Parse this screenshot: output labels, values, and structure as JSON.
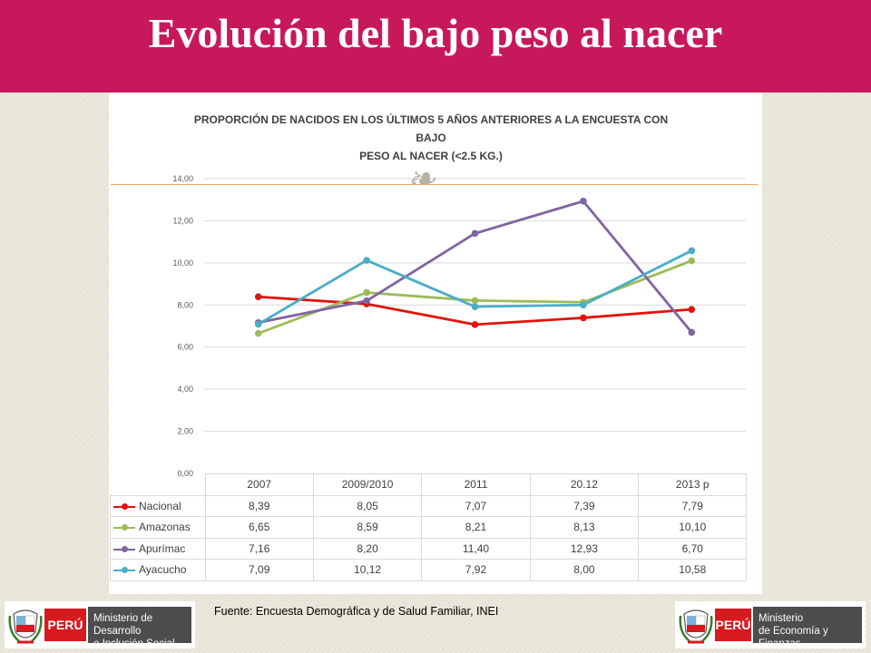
{
  "header": {
    "title": "Evolución del bajo peso al nacer",
    "bg_color": "#c8185c"
  },
  "chart_data": {
    "type": "line",
    "title_lines": [
      "PROPORCIÓN DE NACIDOS EN LOS ÚLTIMOS 5 AÑOS ANTERIORES A LA ENCUESTA CON",
      "BAJO",
      "PESO AL NACER (<2.5 KG.)"
    ],
    "categories": [
      "2007",
      "2009/2010",
      "2011",
      "20.12",
      "2013 p"
    ],
    "ylim": [
      0,
      14
    ],
    "yticks": [
      "0,00",
      "2,00",
      "4,00",
      "6,00",
      "8,00",
      "10,00",
      "12,00",
      "14,00"
    ],
    "grid": true,
    "legend": "data-table",
    "series": [
      {
        "name": "Nacional",
        "color": "#e3120b",
        "values": [
          8.39,
          8.05,
          7.07,
          7.39,
          7.79
        ],
        "labels": [
          "8,39",
          "8,05",
          "7,07",
          "7,39",
          "7,79"
        ]
      },
      {
        "name": "Amazonas",
        "color": "#9bbb59",
        "values": [
          6.65,
          8.59,
          8.21,
          8.13,
          10.1
        ],
        "labels": [
          "6,65",
          "8,59",
          "8,21",
          "8,13",
          "10,10"
        ]
      },
      {
        "name": "Apurímac",
        "color": "#8064a2",
        "values": [
          7.16,
          8.2,
          11.4,
          12.93,
          6.7
        ],
        "labels": [
          "7,16",
          "8,20",
          "11,40",
          "12,93",
          "6,70"
        ]
      },
      {
        "name": "Ayacucho",
        "color": "#4bacc6",
        "values": [
          7.09,
          10.12,
          7.92,
          8.0,
          10.58
        ],
        "labels": [
          "7,09",
          "10,12",
          "7,92",
          "8,00",
          "10,58"
        ]
      }
    ]
  },
  "footer": {
    "source": "Fuente: Encuesta Demográfica y de Salud Familiar, INEI",
    "logo_left": {
      "country": "PERÚ",
      "ministry": "Ministerio de Desarrollo\ne Inclusión Social"
    },
    "logo_right": {
      "country": "PERÚ",
      "ministry": "Ministerio\nde Economía y Finanzas"
    }
  },
  "ornament": {
    "glyph": "❧"
  }
}
